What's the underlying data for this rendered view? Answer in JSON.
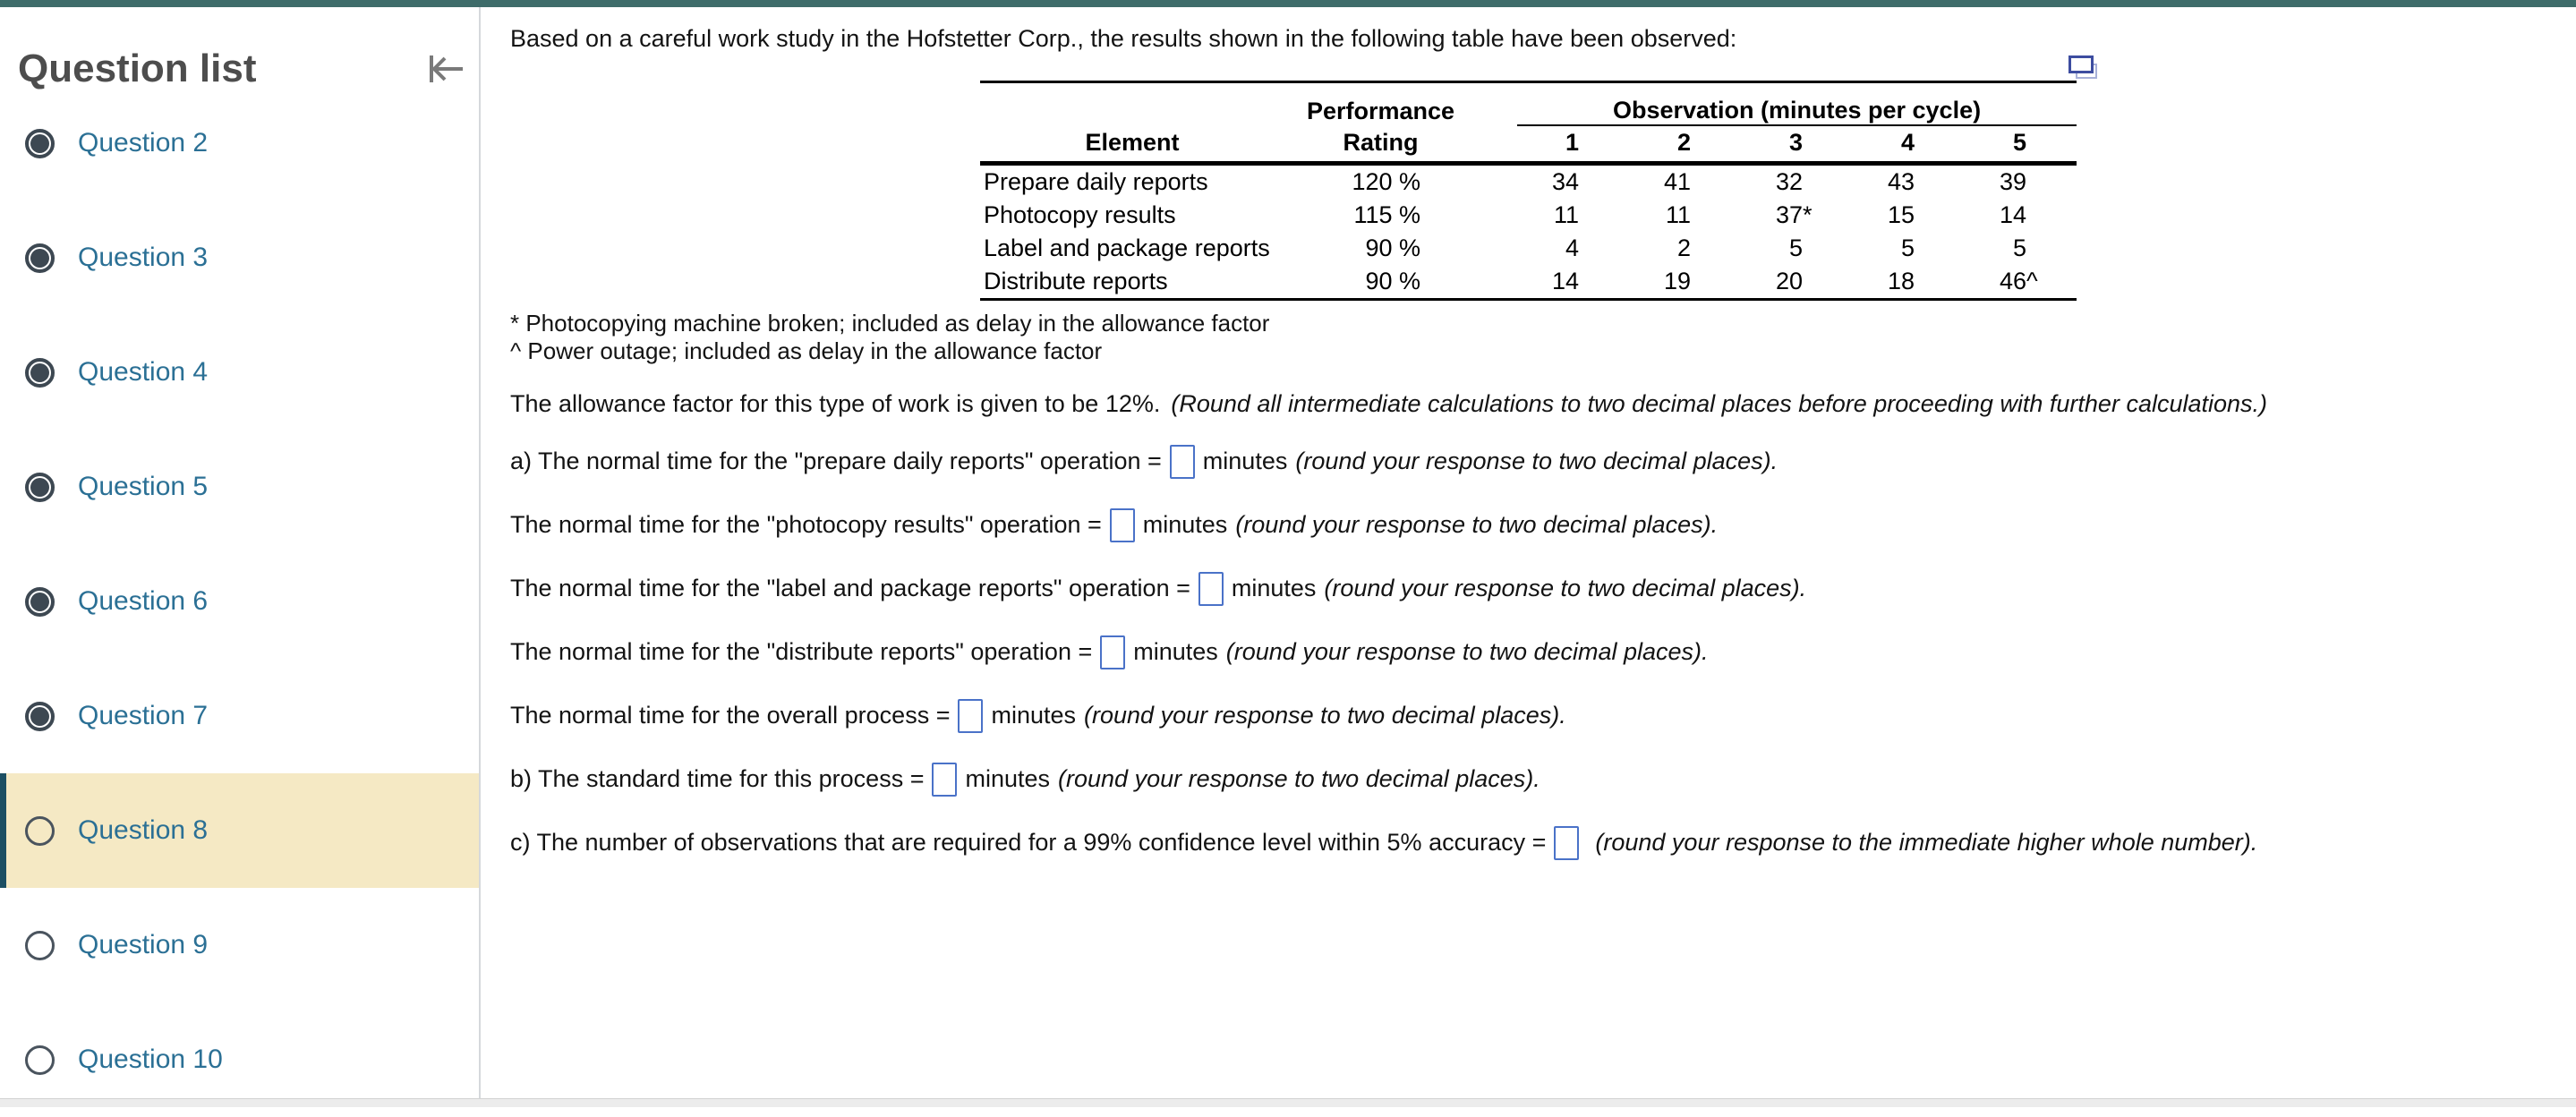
{
  "theme": {
    "top_bar_color": "#3e6c6a",
    "link_color": "#2b7095",
    "highlight_bg": "#f5e9c4",
    "highlight_bar": "#1c4f63",
    "input_border": "#4a72c8",
    "popout_icon_color": "#3d4da0"
  },
  "sidebar": {
    "title": "Question list",
    "items": [
      {
        "label": "Question 2",
        "state": "answered"
      },
      {
        "label": "Question 3",
        "state": "answered"
      },
      {
        "label": "Question 4",
        "state": "answered"
      },
      {
        "label": "Question 5",
        "state": "answered"
      },
      {
        "label": "Question 6",
        "state": "answered"
      },
      {
        "label": "Question 7",
        "state": "answered"
      },
      {
        "label": "Question 8",
        "state": "current"
      },
      {
        "label": "Question 9",
        "state": "unanswered"
      },
      {
        "label": "Question 10",
        "state": "unanswered"
      }
    ]
  },
  "main": {
    "intro": "Based on a careful work study in the Hofstetter Corp., the results shown in the following table have been observed:",
    "table": {
      "headers": {
        "performance": "Performance",
        "observation": "Observation (minutes per cycle)",
        "element": "Element",
        "rating": "Rating",
        "obs": [
          "1",
          "2",
          "3",
          "4",
          "5"
        ]
      },
      "rows": [
        {
          "element": "Prepare daily reports",
          "rating": "120 %",
          "obs": [
            {
              "v": "34"
            },
            {
              "v": "41"
            },
            {
              "v": "32"
            },
            {
              "v": "43"
            },
            {
              "v": "39"
            }
          ]
        },
        {
          "element": "Photocopy results",
          "rating": "115 %",
          "obs": [
            {
              "v": "11"
            },
            {
              "v": "11"
            },
            {
              "v": "37",
              "m": "*"
            },
            {
              "v": "15"
            },
            {
              "v": "14"
            }
          ]
        },
        {
          "element": "Label and package reports",
          "rating": "90 %",
          "obs": [
            {
              "v": "4"
            },
            {
              "v": "2"
            },
            {
              "v": "5"
            },
            {
              "v": "5"
            },
            {
              "v": "5"
            }
          ]
        },
        {
          "element": "Distribute reports",
          "rating": "90 %",
          "obs": [
            {
              "v": "14"
            },
            {
              "v": "19"
            },
            {
              "v": "20"
            },
            {
              "v": "18"
            },
            {
              "v": "46",
              "m": "^"
            }
          ]
        }
      ]
    },
    "footnotes": [
      "* Photocopying machine broken; included as delay in the allowance factor",
      "^ Power outage; included as delay in the allowance factor"
    ],
    "allowance_text": "The allowance factor for this type of work is given to be 12%.",
    "allowance_note": "(Round all intermediate calculations to two decimal places before proceeding with further calculations.)",
    "questions": [
      {
        "prefix": "a) The normal time for the \"prepare daily reports\" operation =",
        "suffix": "minutes",
        "note": "(round your response to two decimal places).",
        "value": ""
      },
      {
        "prefix": "The normal time for the \"photocopy results\" operation =",
        "suffix": "minutes",
        "note": "(round your response to two decimal places).",
        "value": ""
      },
      {
        "prefix": "The normal time for the \"label and package reports\" operation =",
        "suffix": "minutes",
        "note": "(round your response to two decimal places).",
        "value": ""
      },
      {
        "prefix": "The normal time for the \"distribute reports\" operation =",
        "suffix": "minutes",
        "note": "(round your response to two decimal places).",
        "value": ""
      },
      {
        "prefix": "The normal time for the overall process =",
        "suffix": "minutes",
        "note": "(round your response to two decimal places).",
        "value": ""
      },
      {
        "prefix": "b) The standard time for this process =",
        "suffix": "minutes",
        "note": "(round your response to two decimal places).",
        "value": ""
      },
      {
        "prefix": "c) The number of observations that are required for a 99% confidence level within 5% accuracy =",
        "suffix": "",
        "note": "(round your response to the immediate higher whole number).",
        "value": ""
      }
    ]
  }
}
